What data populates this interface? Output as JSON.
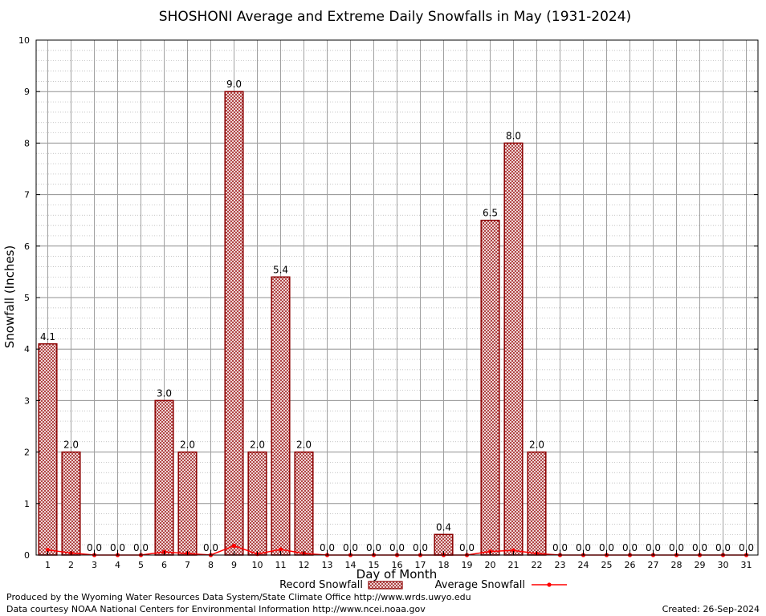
{
  "chart_data": {
    "type": "bar",
    "title": "SHOSHONI Average and Extreme Daily Snowfalls in May (1931-2024)",
    "xlabel": "Day of Month",
    "ylabel": "Snowfall (Inches)",
    "ylim": [
      0,
      10
    ],
    "yticks": [
      "0",
      "1",
      "2",
      "3",
      "4",
      "5",
      "6",
      "7",
      "8",
      "9",
      "10"
    ],
    "grid": true,
    "categories": [
      "1",
      "2",
      "3",
      "4",
      "5",
      "6",
      "7",
      "8",
      "9",
      "10",
      "11",
      "12",
      "13",
      "14",
      "15",
      "16",
      "17",
      "18",
      "19",
      "20",
      "21",
      "22",
      "23",
      "24",
      "25",
      "26",
      "27",
      "28",
      "29",
      "30",
      "31"
    ],
    "series": [
      {
        "name": "Record Snowfall",
        "type": "bar",
        "color": "#b22222",
        "values": [
          4.1,
          2.0,
          0.0,
          0.0,
          0.0,
          3.0,
          2.0,
          0.0,
          9.0,
          2.0,
          5.4,
          2.0,
          0.0,
          0.0,
          0.0,
          0.0,
          0.0,
          0.4,
          0.0,
          6.5,
          8.0,
          2.0,
          0.0,
          0.0,
          0.0,
          0.0,
          0.0,
          0.0,
          0.0,
          0.0,
          0.0
        ],
        "labels": [
          "4.1",
          "2.0",
          "0.0",
          "0.0",
          "0.0",
          "3.0",
          "2.0",
          "0.0",
          "9.0",
          "2.0",
          "5.4",
          "2.0",
          "0.0",
          "0.0",
          "0.0",
          "0.0",
          "0.0",
          "0.4",
          "0.0",
          "6.5",
          "8.0",
          "2.0",
          "0.0",
          "0.0",
          "0.0",
          "0.0",
          "0.0",
          "0.0",
          "0.0",
          "0.0",
          "0.0"
        ]
      },
      {
        "name": "Average Snowfall",
        "type": "line",
        "color": "#ff0000",
        "values": [
          0.1,
          0.04,
          0.0,
          0.0,
          0.0,
          0.06,
          0.03,
          0.0,
          0.18,
          0.02,
          0.11,
          0.03,
          0.0,
          0.0,
          0.0,
          0.0,
          0.0,
          0.0,
          0.0,
          0.07,
          0.09,
          0.03,
          0.0,
          0.0,
          0.0,
          0.0,
          0.0,
          0.0,
          0.0,
          0.0,
          0.0
        ]
      }
    ],
    "legend_position": "bottom-center"
  },
  "footer": {
    "produced_by": "Produced by the Wyoming Water Resources Data System/State Climate Office http://www.wrds.uwyo.edu",
    "data_courtesy": "Data courtesy NOAA National Centers for Environmental Information http://www.ncei.noaa.gov",
    "created": "Created: 26-Sep-2024"
  }
}
